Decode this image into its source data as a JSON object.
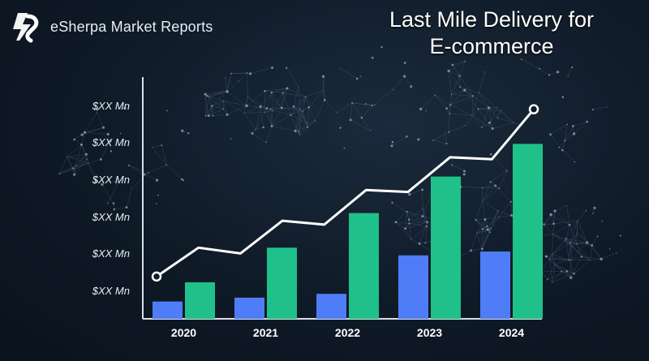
{
  "brand": {
    "name": "eSherpa Market Reports",
    "icon": "esherpa-logo-icon"
  },
  "title_line1": "Last Mile Delivery for",
  "title_line2": "E-commerce",
  "colors": {
    "bar_series_1": "#4f7df7",
    "bar_series_2": "#1fc08a",
    "line": "#ffffff",
    "axis": "#d9dee4"
  },
  "chart_data": {
    "type": "bar",
    "title": "Last Mile Delivery for E-commerce",
    "categories": [
      "2020",
      "2021",
      "2022",
      "2023",
      "2024"
    ],
    "ytick_labels": [
      "$XX Mn",
      "$XX Mn",
      "$XX Mn",
      "$XX Mn",
      "$XX Mn",
      "$XX Mn"
    ],
    "ylim": [
      0,
      100
    ],
    "series": [
      {
        "values": [
          9,
          11,
          13,
          33,
          35
        ]
      },
      {
        "values": [
          19,
          37,
          55,
          74,
          91
        ]
      }
    ],
    "trend_line": {
      "type": "line",
      "values": [
        22,
        37,
        34,
        51,
        49,
        67,
        66,
        84,
        83,
        109
      ]
    },
    "grid": false,
    "legend": "none"
  }
}
